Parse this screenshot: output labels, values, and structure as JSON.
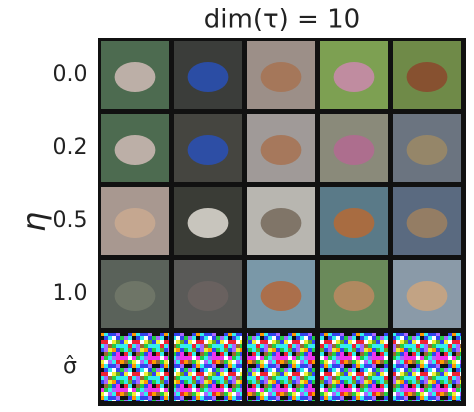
{
  "title": "dim(τ) = 10",
  "y_label": "η",
  "rows": [
    {
      "label": "0.0"
    },
    {
      "label": "0.2"
    },
    {
      "label": "0.5"
    },
    {
      "label": "1.0"
    },
    {
      "label": "σ̂"
    }
  ]
}
